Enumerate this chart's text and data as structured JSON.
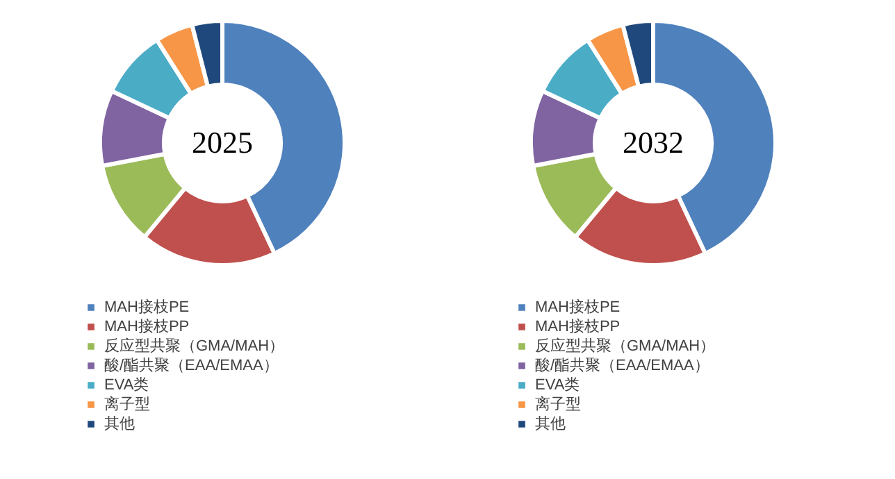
{
  "chart_data": [
    {
      "type": "donut",
      "title": "2025",
      "categories": [
        "MAH接枝PE",
        "MAH接枝PP",
        "反应型共聚（GMA/MAH）",
        "酸/酯共聚（EAA/EMAA）",
        "EVA类",
        "离子型",
        "其他"
      ],
      "values": [
        43,
        18,
        11,
        10,
        9,
        5,
        4
      ],
      "colors": [
        "#4f81bd",
        "#c0504d",
        "#9bbb59",
        "#8064a2",
        "#4bacc6",
        "#f79646",
        "#1f497d"
      ],
      "legend": "bottom"
    },
    {
      "type": "donut",
      "title": "2032",
      "categories": [
        "MAH接枝PE",
        "MAH接枝PP",
        "反应型共聚（GMA/MAH）",
        "酸/酯共聚（EAA/EMAA）",
        "EVA类",
        "离子型",
        "其他"
      ],
      "values": [
        43,
        18,
        11,
        10,
        9,
        5,
        4
      ],
      "colors": [
        "#4f81bd",
        "#c0504d",
        "#9bbb59",
        "#8064a2",
        "#4bacc6",
        "#f79646",
        "#1f497d"
      ],
      "legend": "bottom"
    }
  ]
}
